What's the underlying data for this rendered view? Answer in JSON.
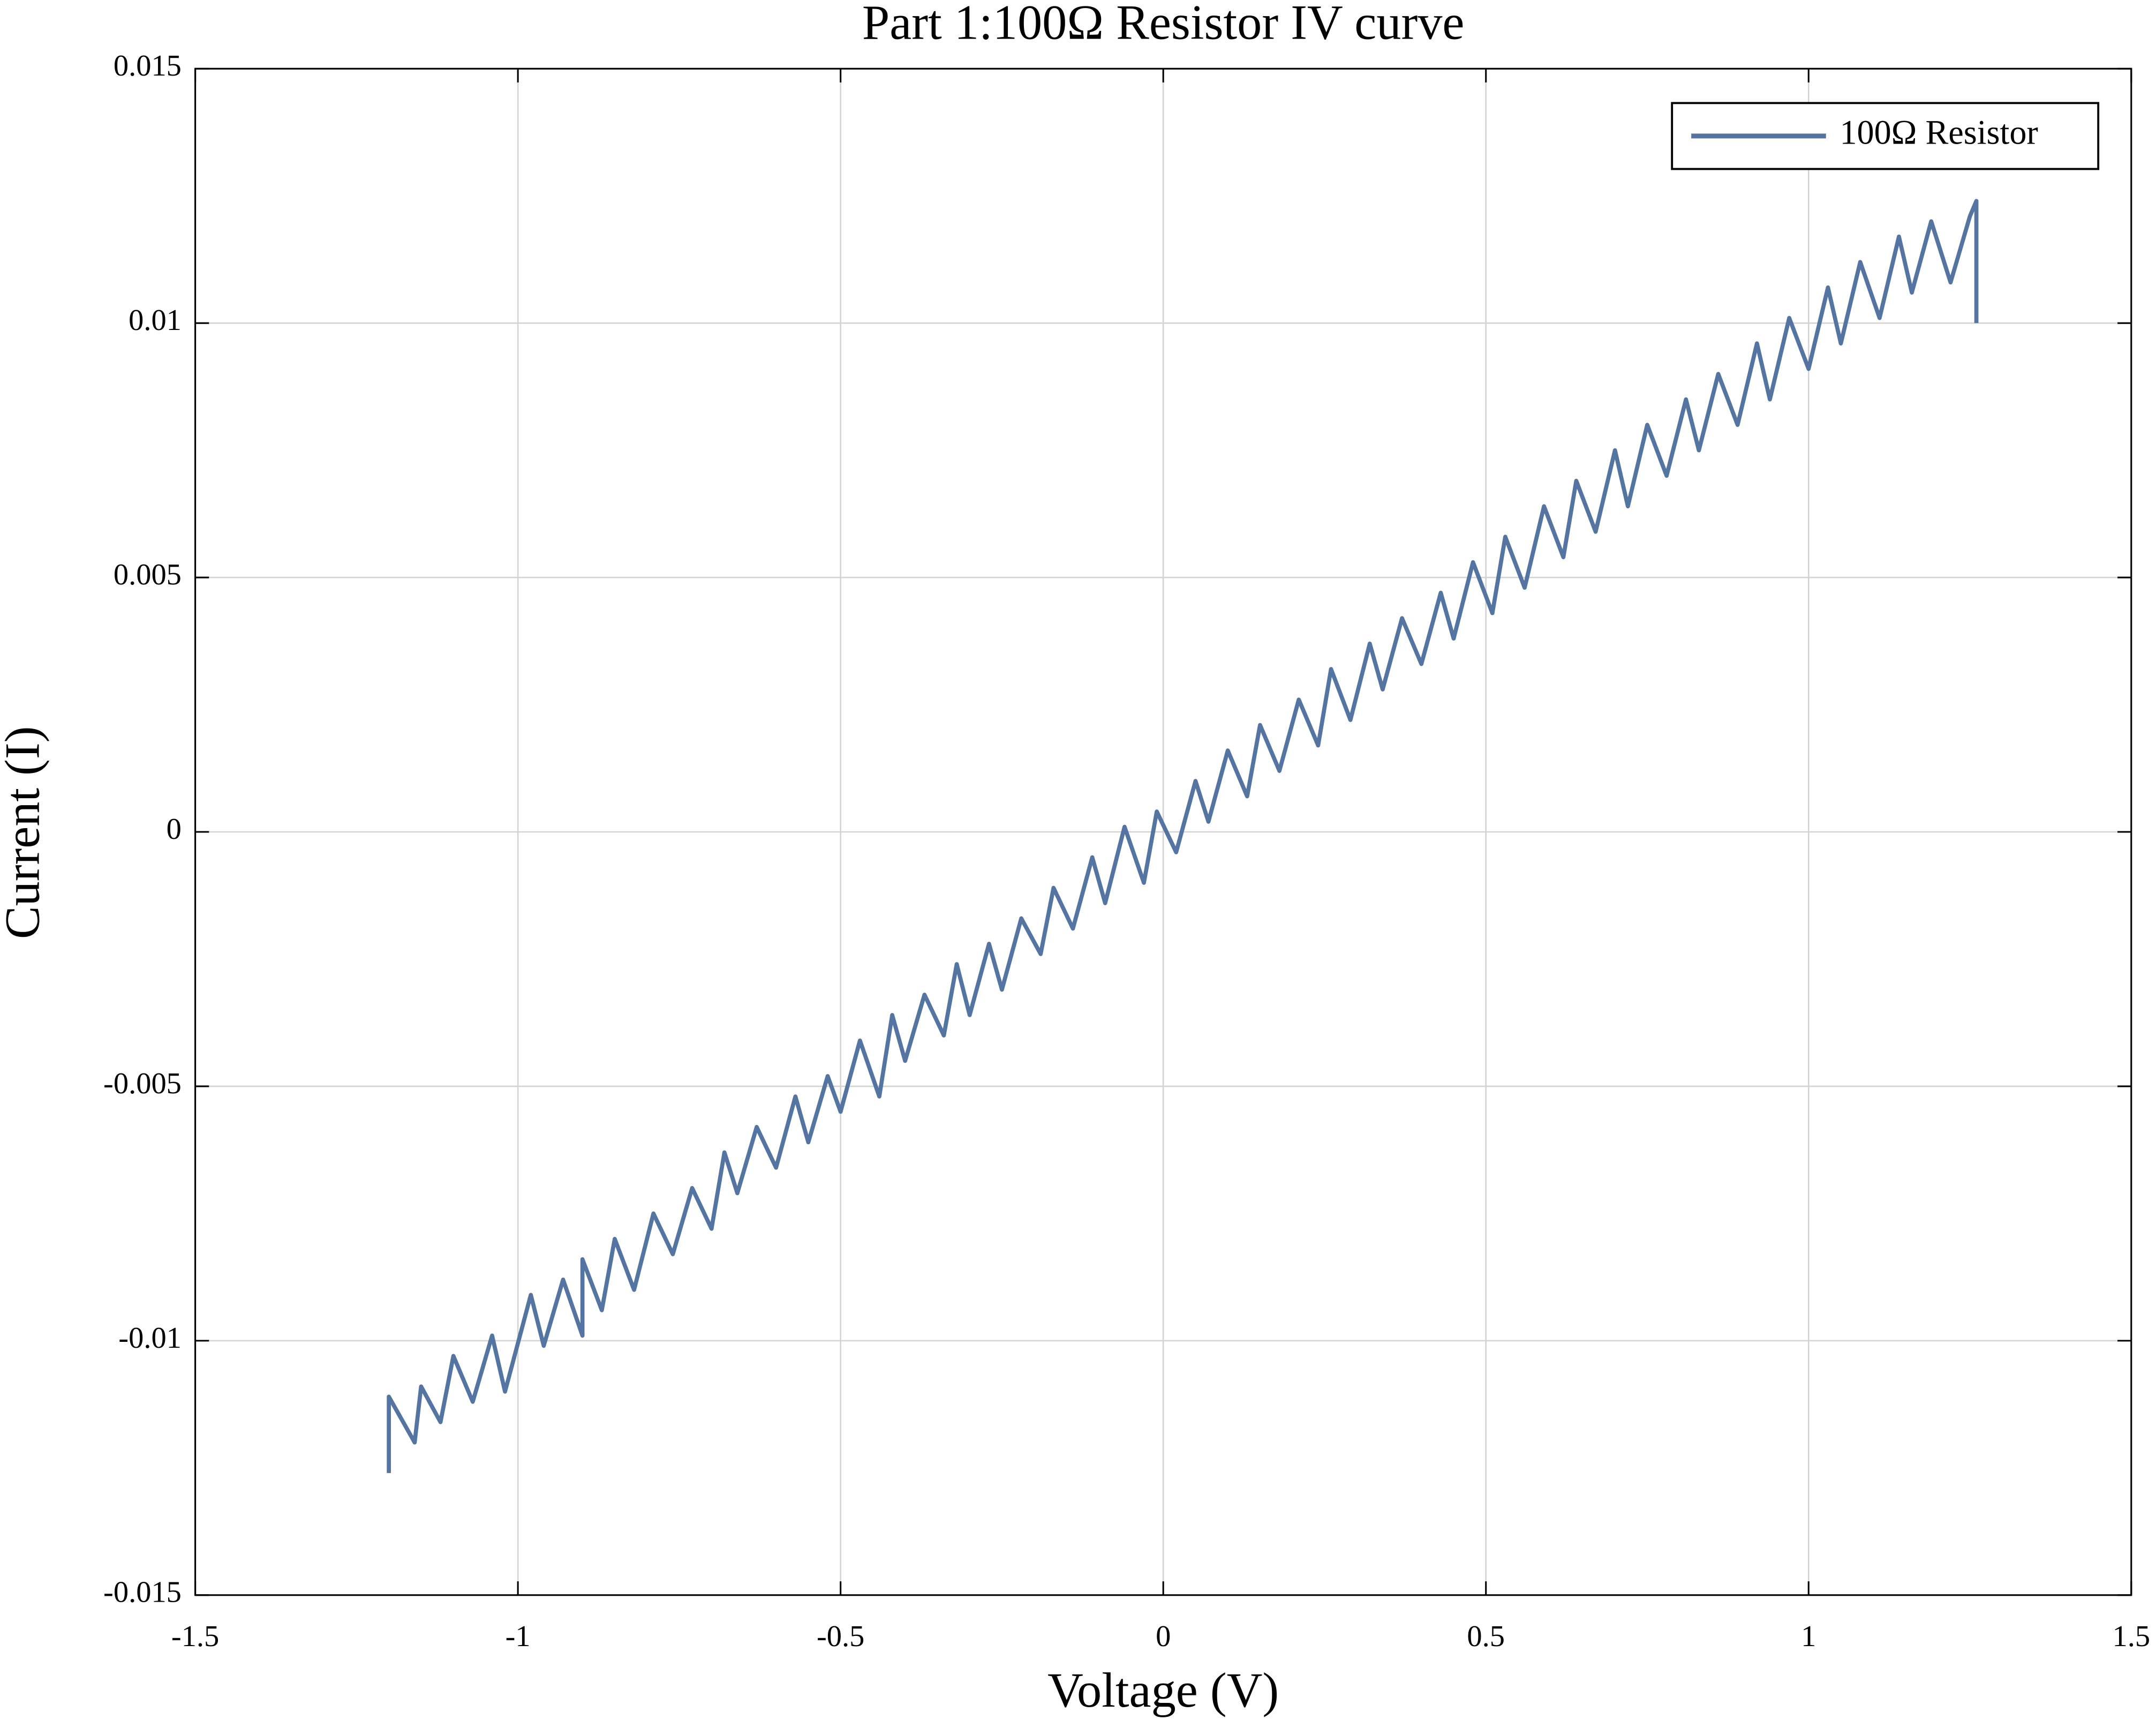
{
  "chart_data": {
    "type": "line",
    "title": "Part 1:100Ω Resistor IV curve",
    "x_label": "Voltage (V)",
    "y_label": "Current (I)",
    "xlim": [
      -1.5,
      1.5
    ],
    "ylim": [
      -0.015,
      0.015
    ],
    "xticks": [
      -1.5,
      -1,
      -0.5,
      0,
      0.5,
      1,
      1.5
    ],
    "yticks": [
      -0.015,
      -0.01,
      -0.005,
      0,
      0.005,
      0.01,
      0.015
    ],
    "grid": true,
    "legend": "upper right",
    "x": [
      -1.2,
      -1.2,
      -1.16,
      -1.15,
      -1.12,
      -1.1,
      -1.07,
      -1.04,
      -1.02,
      -0.98,
      -0.96,
      -0.93,
      -0.9,
      -0.9,
      -0.87,
      -0.85,
      -0.82,
      -0.79,
      -0.76,
      -0.73,
      -0.7,
      -0.68,
      -0.66,
      -0.63,
      -0.6,
      -0.57,
      -0.55,
      -0.52,
      -0.5,
      -0.47,
      -0.44,
      -0.42,
      -0.4,
      -0.37,
      -0.34,
      -0.32,
      -0.3,
      -0.27,
      -0.25,
      -0.22,
      -0.19,
      -0.17,
      -0.14,
      -0.11,
      -0.09,
      -0.06,
      -0.03,
      -0.01,
      0.02,
      0.05,
      0.07,
      0.1,
      0.13,
      0.15,
      0.18,
      0.21,
      0.24,
      0.26,
      0.29,
      0.32,
      0.34,
      0.37,
      0.4,
      0.43,
      0.45,
      0.48,
      0.51,
      0.53,
      0.56,
      0.59,
      0.62,
      0.64,
      0.67,
      0.7,
      0.72,
      0.75,
      0.78,
      0.81,
      0.83,
      0.86,
      0.89,
      0.92,
      0.94,
      0.97,
      1.0,
      1.03,
      1.05,
      1.08,
      1.11,
      1.14,
      1.16,
      1.19,
      1.22,
      1.25,
      1.26,
      1.26
    ],
    "series": [
      {
        "name": "100Ω Resistor",
        "color": "#5474a2",
        "values": [
          -0.0126,
          -0.0111,
          -0.012,
          -0.0109,
          -0.0116,
          -0.0103,
          -0.0112,
          -0.0099,
          -0.011,
          -0.0091,
          -0.0101,
          -0.0088,
          -0.0099,
          -0.0084,
          -0.0094,
          -0.008,
          -0.009,
          -0.0075,
          -0.0083,
          -0.007,
          -0.0078,
          -0.0063,
          -0.0071,
          -0.0058,
          -0.0066,
          -0.0052,
          -0.0061,
          -0.0048,
          -0.0055,
          -0.0041,
          -0.0052,
          -0.0036,
          -0.0045,
          -0.0032,
          -0.004,
          -0.0026,
          -0.0036,
          -0.0022,
          -0.0031,
          -0.0017,
          -0.0024,
          -0.0011,
          -0.0019,
          -0.0005,
          -0.0014,
          0.0001,
          -0.001,
          0.0004,
          -0.0004,
          0.001,
          0.0002,
          0.0016,
          0.0007,
          0.0021,
          0.0012,
          0.0026,
          0.0017,
          0.0032,
          0.0022,
          0.0037,
          0.0028,
          0.0042,
          0.0033,
          0.0047,
          0.0038,
          0.0053,
          0.0043,
          0.0058,
          0.0048,
          0.0064,
          0.0054,
          0.0069,
          0.0059,
          0.0075,
          0.0064,
          0.008,
          0.007,
          0.0085,
          0.0075,
          0.009,
          0.008,
          0.0096,
          0.0085,
          0.0101,
          0.0091,
          0.0107,
          0.0096,
          0.0112,
          0.0101,
          0.0117,
          0.0106,
          0.012,
          0.0108,
          0.0121,
          0.0124,
          0.01
        ]
      }
    ]
  }
}
